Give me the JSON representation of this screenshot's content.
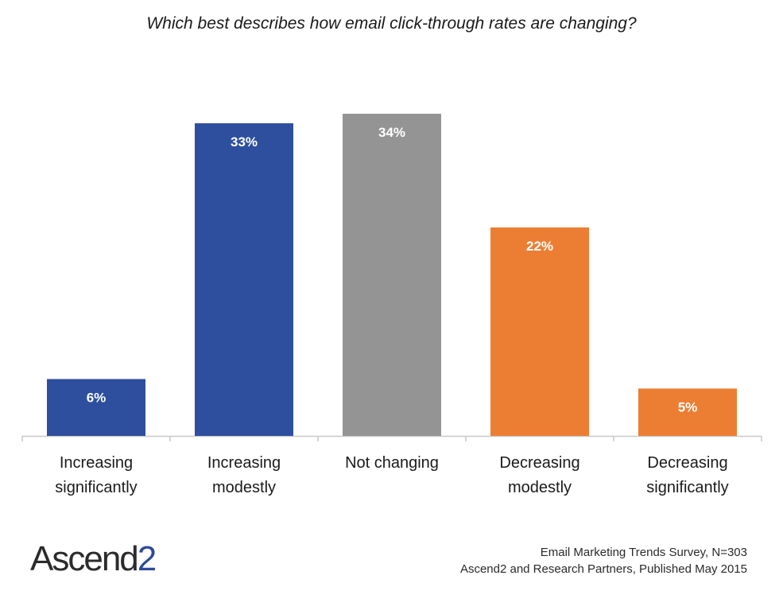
{
  "chart_data": {
    "type": "bar",
    "title": "Which best describes how email click-through rates are changing?",
    "categories": [
      [
        "Increasing",
        "significantly"
      ],
      [
        "Increasing",
        "modestly"
      ],
      [
        "Not changing"
      ],
      [
        "Decreasing",
        "modestly"
      ],
      [
        "Decreasing",
        "significantly"
      ]
    ],
    "values": [
      6,
      33,
      34,
      22,
      5
    ],
    "value_labels": [
      "6%",
      "33%",
      "34%",
      "22%",
      "5%"
    ],
    "colors": [
      "#2e4f9e",
      "#2e4f9e",
      "#949494",
      "#ec7e34",
      "#ec7e34"
    ],
    "unit": "%",
    "ylim": [
      0,
      34
    ],
    "grid": false,
    "legend": "none"
  },
  "brand": {
    "name": "Ascend",
    "mark": "2"
  },
  "source": {
    "line1": "Email Marketing Trends Survey, N=303",
    "line2": "Ascend2 and Research Partners, Published May 2015"
  }
}
